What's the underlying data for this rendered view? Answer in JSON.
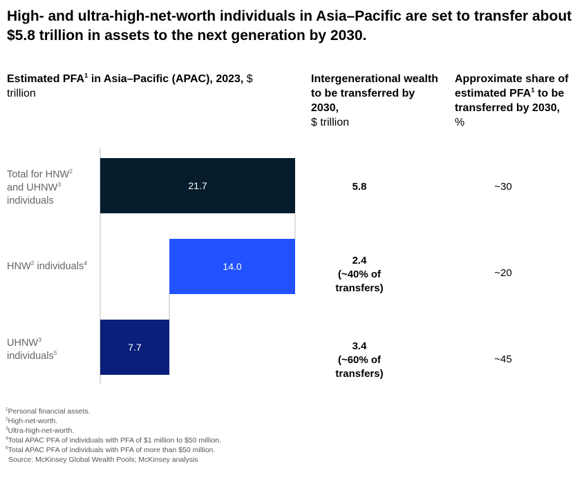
{
  "title": "High- and ultra-high-net-worth individuals in Asia–Pacific are set to transfer about $5.8 trillion in assets to the next generation by 2030.",
  "headers": {
    "col1": {
      "bold_a": "Estimated PFA",
      "sup": "1",
      "bold_b": " in Asia–Pacific (APAC), 2023,",
      "unit": " $ trillion"
    },
    "col2": {
      "bold": "Intergenerational wealth to be transferred by 2030,",
      "unit": "$ trillion"
    },
    "col3": {
      "bold_a": "Approximate share of estimated PFA",
      "sup": "1",
      "bold_b": " to be transferred by 2030,",
      "unit": "%"
    }
  },
  "rows": [
    {
      "label_parts": [
        "Total for HNW",
        "2",
        " and UHNW",
        "3",
        " individuals"
      ],
      "transfer_lines": [
        "5.8"
      ],
      "share": "~30"
    },
    {
      "label_parts": [
        "HNW",
        "2",
        " individuals",
        "4"
      ],
      "transfer_lines": [
        "2.4",
        "(~40% of",
        "transfers)"
      ],
      "share": "~20"
    },
    {
      "label_parts": [
        "UHNW",
        "3",
        " individuals",
        "5"
      ],
      "transfer_lines": [
        "3.4",
        "(~60% of",
        "transfers)"
      ],
      "share": "~45"
    }
  ],
  "chart_data": {
    "type": "bar",
    "subtype": "waterfall-horizontal",
    "title": "Estimated PFA in Asia–Pacific (APAC), 2023, $ trillion",
    "categories": [
      "Total for HNW and UHNW individuals",
      "HNW individuals",
      "UHNW individuals"
    ],
    "values": [
      21.7,
      14.0,
      7.7
    ],
    "value_labels": [
      "21.7",
      "14.0",
      "7.7"
    ],
    "starts": [
      0,
      7.7,
      0
    ],
    "xlim": [
      0,
      21.7
    ],
    "colors": [
      "#051c2c",
      "#2251ff",
      "#0a1f7a"
    ],
    "label_colors": [
      "#ffffff",
      "#ffffff",
      "#ffffff"
    ]
  },
  "footnotes": [
    {
      "sup": "1",
      "text": "Personal financial assets."
    },
    {
      "sup": "2",
      "text": "High-net-worth."
    },
    {
      "sup": "3",
      "text": "Ultra-high-net-worth."
    },
    {
      "sup": "4",
      "text": "Total APAC PFA of individuals with PFA of $1 million to $50 million."
    },
    {
      "sup": "5",
      "text": "Total APAC PFA of individuals with PFA of more than $50 million."
    }
  ],
  "source": "Source: McKinsey Global Wealth Pools; McKinsey analysis"
}
